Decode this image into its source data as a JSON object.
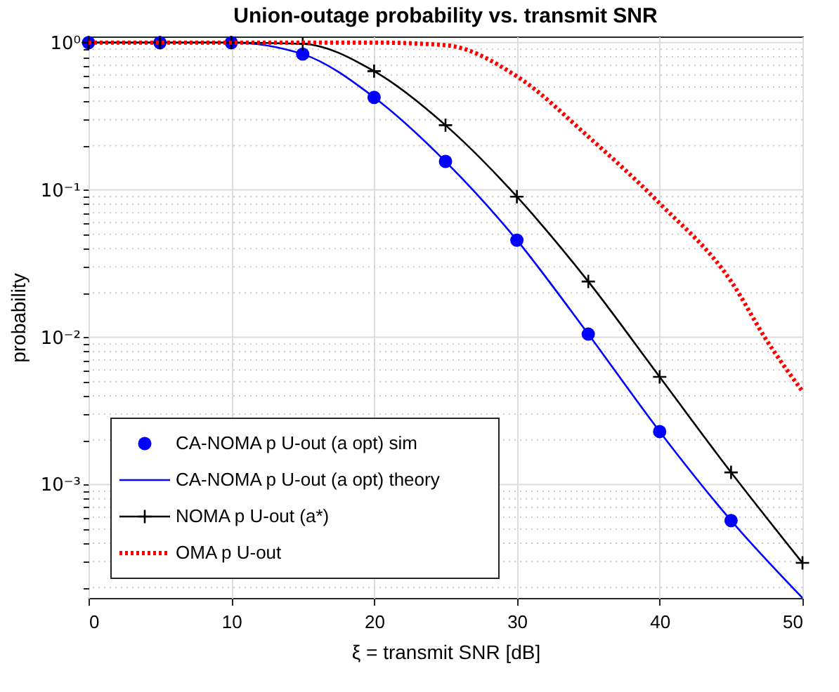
{
  "chart_data": {
    "type": "line",
    "title": "Union-outage probability vs. transmit SNR",
    "xlabel": "ξ = transmit SNR [dB]",
    "ylabel": "probability",
    "log": "y",
    "grid": true,
    "legend": "bottom left",
    "xlim": [
      0,
      50
    ],
    "ylim": [
      0.00017,
      1.1
    ],
    "xticks": [
      0,
      10,
      20,
      30,
      40,
      50
    ],
    "yticks": [
      {
        "value": 0.0002,
        "label": null
      },
      {
        "value": 0.0003,
        "label": null
      },
      {
        "value": 0.0004,
        "label": null
      },
      {
        "value": 0.0005,
        "label": null
      },
      {
        "value": 0.0006,
        "label": null
      },
      {
        "value": 0.0007,
        "label": null
      },
      {
        "value": 0.0008,
        "label": null
      },
      {
        "value": 0.0009,
        "label": null
      },
      {
        "value": 0.001,
        "label": "10⁻³"
      },
      {
        "value": 0.002,
        "label": null
      },
      {
        "value": 0.003,
        "label": null
      },
      {
        "value": 0.004,
        "label": null
      },
      {
        "value": 0.005,
        "label": null
      },
      {
        "value": 0.006,
        "label": null
      },
      {
        "value": 0.007,
        "label": null
      },
      {
        "value": 0.008,
        "label": null
      },
      {
        "value": 0.009,
        "label": null
      },
      {
        "value": 0.01,
        "label": "10⁻²"
      },
      {
        "value": 0.02,
        "label": null
      },
      {
        "value": 0.03,
        "label": null
      },
      {
        "value": 0.04,
        "label": null
      },
      {
        "value": 0.05,
        "label": null
      },
      {
        "value": 0.06,
        "label": null
      },
      {
        "value": 0.07,
        "label": null
      },
      {
        "value": 0.08,
        "label": null
      },
      {
        "value": 0.09,
        "label": null
      },
      {
        "value": 0.1,
        "label": "10⁻¹"
      },
      {
        "value": 0.2,
        "label": null
      },
      {
        "value": 0.3,
        "label": null
      },
      {
        "value": 0.4,
        "label": null
      },
      {
        "value": 0.5,
        "label": null
      },
      {
        "value": 0.6,
        "label": null
      },
      {
        "value": 0.7,
        "label": null
      },
      {
        "value": 0.8,
        "label": null
      },
      {
        "value": 0.9,
        "label": null
      },
      {
        "value": 1,
        "label": "10⁰"
      }
    ],
    "series": [
      {
        "name": "CA-NOMA p U-out (a opt) sim",
        "type": "scatter",
        "marker": "circle",
        "color": "#0000ff",
        "x": [
          0,
          5,
          10,
          15,
          20,
          25,
          30,
          35,
          40,
          45
        ],
        "values": [
          1,
          1,
          1,
          0.835,
          0.425,
          0.156,
          0.0456,
          0.0105,
          0.00229,
          0.00057
        ]
      },
      {
        "name": "CA-NOMA p U-out (a opt) theory",
        "marker": "none",
        "line_style": "solid",
        "color": "#0000ff",
        "x": [
          0,
          5,
          10,
          15,
          20,
          25,
          30,
          35,
          40,
          45,
          50
        ],
        "values": [
          1,
          1,
          1,
          0.835,
          0.425,
          0.156,
          0.0456,
          0.0105,
          0.00229,
          0.00057,
          0.00017
        ]
      },
      {
        "name": "NOMA p U-out (a*)",
        "marker": "cross",
        "line_style": "solid",
        "color": "#000000",
        "x": [
          0,
          5,
          10,
          15,
          20,
          25,
          30,
          35,
          40,
          45,
          50
        ],
        "values": [
          1,
          1,
          1,
          0.98,
          0.64,
          0.275,
          0.09,
          0.0239,
          0.00538,
          0.00121,
          0.000294
        ]
      },
      {
        "name": "OMA p U-out",
        "marker": "none",
        "line_style": "dotted",
        "color": "#ff0000",
        "x": [
          0,
          5,
          10,
          15,
          20,
          25,
          30,
          35,
          40,
          45,
          47.5,
          50
        ],
        "values": [
          1,
          1,
          1,
          1,
          1,
          0.96,
          0.59,
          0.23,
          0.081,
          0.024,
          0.0095,
          0.0043
        ]
      }
    ]
  }
}
